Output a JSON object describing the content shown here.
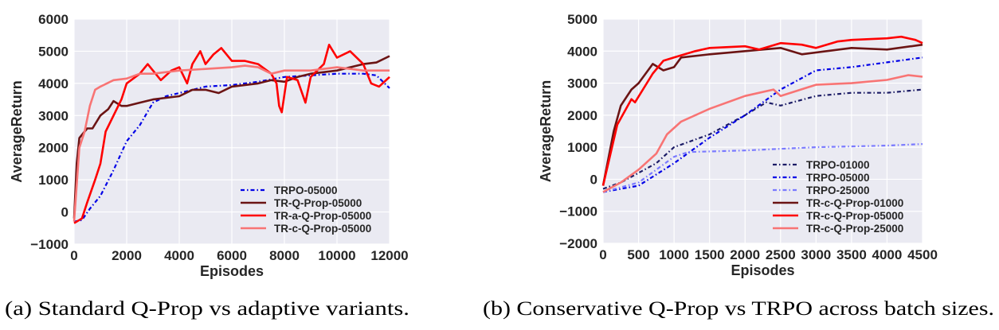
{
  "chart_data": [
    {
      "type": "line",
      "caption": "(a) Standard Q-Prop vs adaptive variants.",
      "xlabel": "Episodes",
      "ylabel": "AverageReturn",
      "xlim": [
        0,
        12000
      ],
      "ylim": [
        -1000,
        6000
      ],
      "xticks": [
        0,
        2000,
        4000,
        6000,
        8000,
        10000,
        12000
      ],
      "yticks": [
        -1000,
        0,
        1000,
        2000,
        3000,
        4000,
        5000,
        6000
      ],
      "ytick_labels": [
        "−1000",
        "0",
        "1000",
        "2000",
        "3000",
        "4000",
        "5000",
        "6000"
      ],
      "grid": true,
      "legend_position": "lower-right",
      "series": [
        {
          "name": "TRPO-05000",
          "color": "#0000e6",
          "style": "dashdot",
          "x": [
            0,
            300,
            600,
            1000,
            1500,
            2000,
            2500,
            3000,
            3500,
            4000,
            5000,
            6000,
            7000,
            8000,
            9000,
            10000,
            11000,
            11500,
            12000
          ],
          "y": [
            -300,
            -250,
            100,
            500,
            1300,
            2200,
            2700,
            3400,
            3600,
            3700,
            3900,
            3950,
            4050,
            4200,
            4250,
            4300,
            4300,
            4250,
            3850
          ]
        },
        {
          "name": "TR-Q-Prop-05000",
          "color": "#6b1414",
          "style": "solid",
          "x": [
            0,
            100,
            200,
            300,
            500,
            700,
            1000,
            1300,
            1500,
            1800,
            2000,
            2500,
            3000,
            3500,
            4000,
            4500,
            5000,
            5500,
            6000,
            7000,
            7500,
            8000,
            8500,
            9000,
            10000,
            11000,
            11500,
            12000
          ],
          "y": [
            -200,
            1500,
            2300,
            2400,
            2600,
            2600,
            3000,
            3200,
            3450,
            3300,
            3300,
            3400,
            3500,
            3550,
            3600,
            3800,
            3800,
            3700,
            3900,
            4000,
            4100,
            4050,
            4200,
            4300,
            4400,
            4600,
            4650,
            4850
          ]
        },
        {
          "name": "TR-a-Q-Prop-05000",
          "color": "#ff0000",
          "style": "solid",
          "x": [
            0,
            300,
            500,
            800,
            1000,
            1200,
            1500,
            1800,
            2000,
            2500,
            2800,
            3000,
            3300,
            3700,
            4000,
            4300,
            4500,
            4800,
            5000,
            5300,
            5600,
            6000,
            6500,
            7000,
            7500,
            7700,
            7800,
            7900,
            8100,
            8500,
            8800,
            9000,
            9500,
            9700,
            10000,
            10500,
            11000,
            11300,
            11600,
            12000
          ],
          "y": [
            -350,
            -200,
            300,
            1000,
            1500,
            2500,
            3000,
            3500,
            4000,
            4300,
            4600,
            4400,
            4100,
            4400,
            4500,
            4000,
            4600,
            5000,
            4600,
            4900,
            5100,
            4700,
            4700,
            4600,
            4300,
            4000,
            3300,
            3100,
            4200,
            4100,
            3400,
            4200,
            4600,
            5200,
            4800,
            5000,
            4600,
            4000,
            3900,
            4200
          ]
        },
        {
          "name": "TR-c-Q-Prop-05000",
          "color": "#f87474",
          "style": "solid",
          "x": [
            0,
            200,
            400,
            600,
            800,
            1000,
            1500,
            2000,
            2500,
            3000,
            4000,
            5000,
            6000,
            6500,
            7000,
            7500,
            8000,
            9000,
            10000,
            11000,
            12000
          ],
          "y": [
            -300,
            2000,
            2500,
            3300,
            3800,
            3900,
            4100,
            4150,
            4300,
            4300,
            4400,
            4450,
            4500,
            4550,
            4500,
            4300,
            4400,
            4400,
            4500,
            4400,
            4400
          ]
        }
      ]
    },
    {
      "type": "line",
      "caption": "(b) Conservative Q-Prop vs TRPO across batch sizes.",
      "xlabel": "Episodes",
      "ylabel": "AverageReturn",
      "xlim": [
        0,
        4500
      ],
      "ylim": [
        -2000,
        5000
      ],
      "xticks": [
        0,
        500,
        1000,
        1500,
        2000,
        2500,
        3000,
        3500,
        4000,
        4500
      ],
      "yticks": [
        -2000,
        -1000,
        0,
        1000,
        2000,
        3000,
        4000,
        5000
      ],
      "ytick_labels": [
        "−2000",
        "−1000",
        "0",
        "1000",
        "2000",
        "3000",
        "4000",
        "5000"
      ],
      "grid": true,
      "legend_position": "lower-right",
      "series": [
        {
          "name": "TRPO-01000",
          "color": "#1c1c66",
          "style": "dashdot",
          "x": [
            0,
            250,
            500,
            750,
            1000,
            1500,
            2000,
            2300,
            2500,
            3000,
            3500,
            4000,
            4500
          ],
          "y": [
            -300,
            -100,
            200,
            500,
            1000,
            1400,
            2000,
            2400,
            2300,
            2600,
            2700,
            2700,
            2800
          ]
        },
        {
          "name": "TRPO-05000",
          "color": "#0000e6",
          "style": "dashdot",
          "x": [
            0,
            500,
            1000,
            1500,
            2000,
            2500,
            3000,
            3500,
            4000,
            4500
          ],
          "y": [
            -400,
            -200,
            500,
            1300,
            2000,
            2800,
            3400,
            3500,
            3650,
            3800
          ]
        },
        {
          "name": "TRPO-25000",
          "color": "#7a7aff",
          "style": "dashdot",
          "x": [
            0,
            500,
            1000,
            1200,
            2000,
            3000,
            4000,
            4500
          ],
          "y": [
            -400,
            -100,
            700,
            850,
            900,
            1000,
            1050,
            1100
          ]
        },
        {
          "name": "TR-c-Q-Prop-01000",
          "color": "#6b1414",
          "style": "solid",
          "x": [
            0,
            150,
            250,
            400,
            500,
            700,
            850,
            1000,
            1100,
            1500,
            2000,
            2500,
            2800,
            3500,
            4000,
            4500
          ],
          "y": [
            -200,
            1500,
            2300,
            2800,
            3000,
            3600,
            3400,
            3500,
            3800,
            3900,
            4000,
            4100,
            3900,
            4100,
            4050,
            4200
          ]
        },
        {
          "name": "TR-c-Q-Prop-05000",
          "color": "#ff0000",
          "style": "solid",
          "x": [
            0,
            200,
            400,
            450,
            700,
            850,
            1000,
            1300,
            1500,
            2000,
            2200,
            2500,
            2800,
            3000,
            3300,
            3500,
            4000,
            4200,
            4400,
            4500
          ],
          "y": [
            -200,
            1700,
            2500,
            2400,
            3300,
            3700,
            3800,
            4000,
            4100,
            4150,
            4050,
            4250,
            4200,
            4100,
            4300,
            4350,
            4400,
            4450,
            4350,
            4250
          ]
        },
        {
          "name": "TR-c-Q-Prop-25000",
          "color": "#f87474",
          "style": "solid",
          "x": [
            0,
            250,
            500,
            750,
            900,
            1100,
            1500,
            2000,
            2400,
            2500,
            3000,
            3500,
            4000,
            4300,
            4500
          ],
          "y": [
            -400,
            -100,
            300,
            800,
            1400,
            1800,
            2200,
            2600,
            2800,
            2600,
            2950,
            3000,
            3100,
            3250,
            3200
          ]
        }
      ]
    }
  ],
  "colors": {
    "plot_background": "#eaeaf2",
    "grid": "#ffffff"
  }
}
